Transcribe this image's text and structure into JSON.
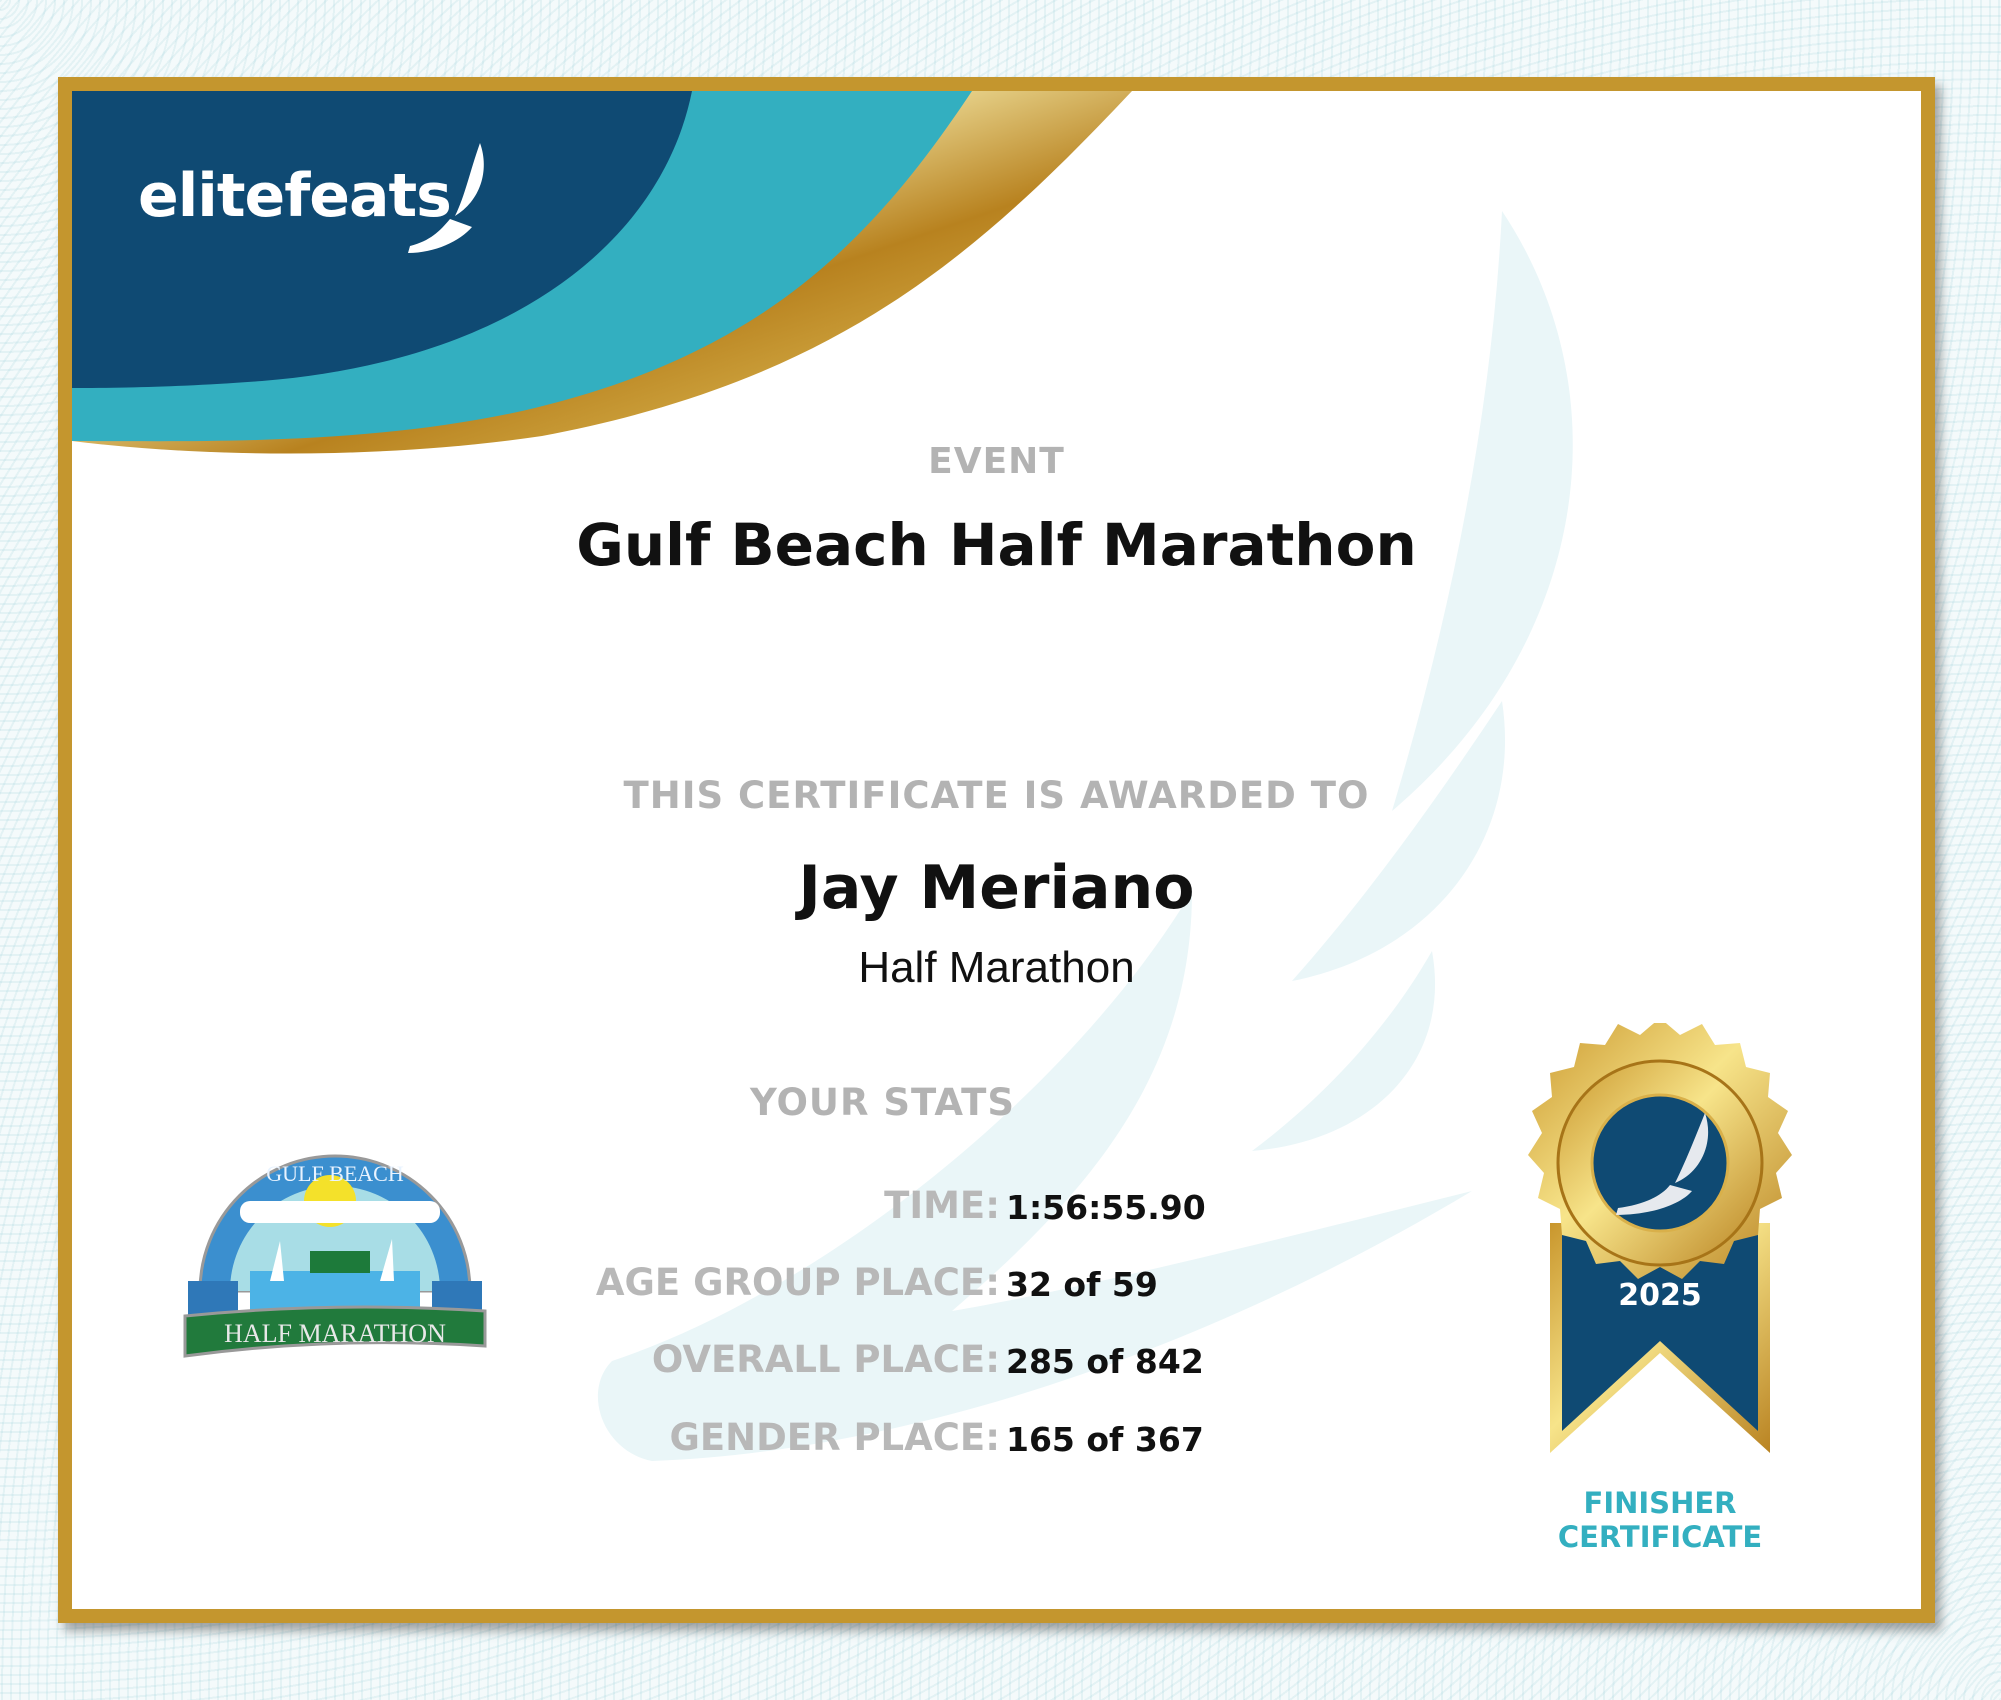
{
  "brand": {
    "logo_text": "elitefeats",
    "colors": {
      "navy": "#0f4a73",
      "teal": "#33afc0",
      "gold": "#c4962e"
    }
  },
  "event": {
    "label": "EVENT",
    "name": "Gulf Beach Half Marathon"
  },
  "award": {
    "label": "THIS CERTIFICATE IS AWARDED TO",
    "recipient": "Jay Meriano",
    "division": "Half Marathon"
  },
  "stats": {
    "label": "YOUR STATS",
    "rows": [
      {
        "label": "TIME:",
        "value": "1:56:55.90"
      },
      {
        "label": "AGE GROUP PLACE:",
        "value": "32 of 59"
      },
      {
        "label": "OVERALL PLACE:",
        "value": "285 of 842"
      },
      {
        "label": "GENDER PLACE:",
        "value": "165 of 367"
      }
    ]
  },
  "race_logo": {
    "top_text": "GULF BEACH",
    "banner_text": "HALF MARATHON"
  },
  "medal": {
    "year": "2025",
    "caption_line1": "FINISHER",
    "caption_line2": "CERTIFICATE"
  }
}
